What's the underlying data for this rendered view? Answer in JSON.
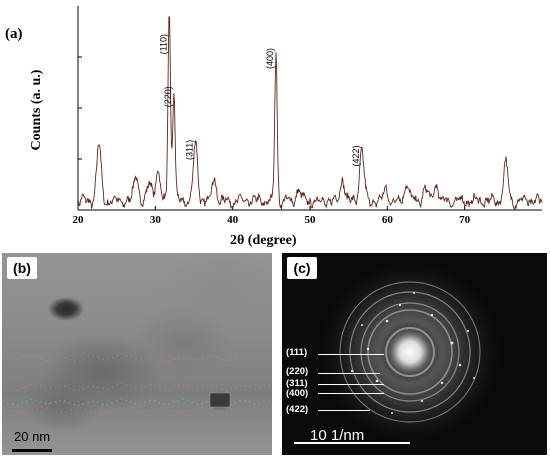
{
  "chart_data": {
    "type": "line",
    "panel_label": "(a)",
    "xlabel": "2θ (degree)",
    "ylabel": "Counts (a. u.)",
    "xlim": [
      20,
      80
    ],
    "xticks": [
      20,
      30,
      40,
      50,
      60,
      70
    ],
    "line_color": "#5a2a1e",
    "peaks": [
      {
        "x": 22.7,
        "y": 0.3
      },
      {
        "x": 27.5,
        "y": 0.14
      },
      {
        "x": 29.3,
        "y": 0.1
      },
      {
        "x": 30.3,
        "y": 0.16
      },
      {
        "x": 31.8,
        "y": 1.0,
        "label": "(110)"
      },
      {
        "x": 32.4,
        "y": 0.58,
        "label": "(220)"
      },
      {
        "x": 35.2,
        "y": 0.3,
        "label": "(311)"
      },
      {
        "x": 37.6,
        "y": 0.12
      },
      {
        "x": 45.6,
        "y": 0.78,
        "label": "(400)"
      },
      {
        "x": 48.5,
        "y": 0.06
      },
      {
        "x": 54.2,
        "y": 0.12
      },
      {
        "x": 56.7,
        "y": 0.27,
        "label": "(422)"
      },
      {
        "x": 59.8,
        "y": 0.06
      },
      {
        "x": 62.5,
        "y": 0.1
      },
      {
        "x": 64.9,
        "y": 0.07
      },
      {
        "x": 66.3,
        "y": 0.09
      },
      {
        "x": 75.3,
        "y": 0.2
      }
    ]
  },
  "tem": {
    "panel_label": "(b)",
    "scale_bar": "20 nm"
  },
  "saed": {
    "panel_label": "(c)",
    "scale_bar": "10 1/nm",
    "rings": [
      "(111)",
      "(220)",
      "(311)",
      "(400)",
      "(422)"
    ]
  }
}
